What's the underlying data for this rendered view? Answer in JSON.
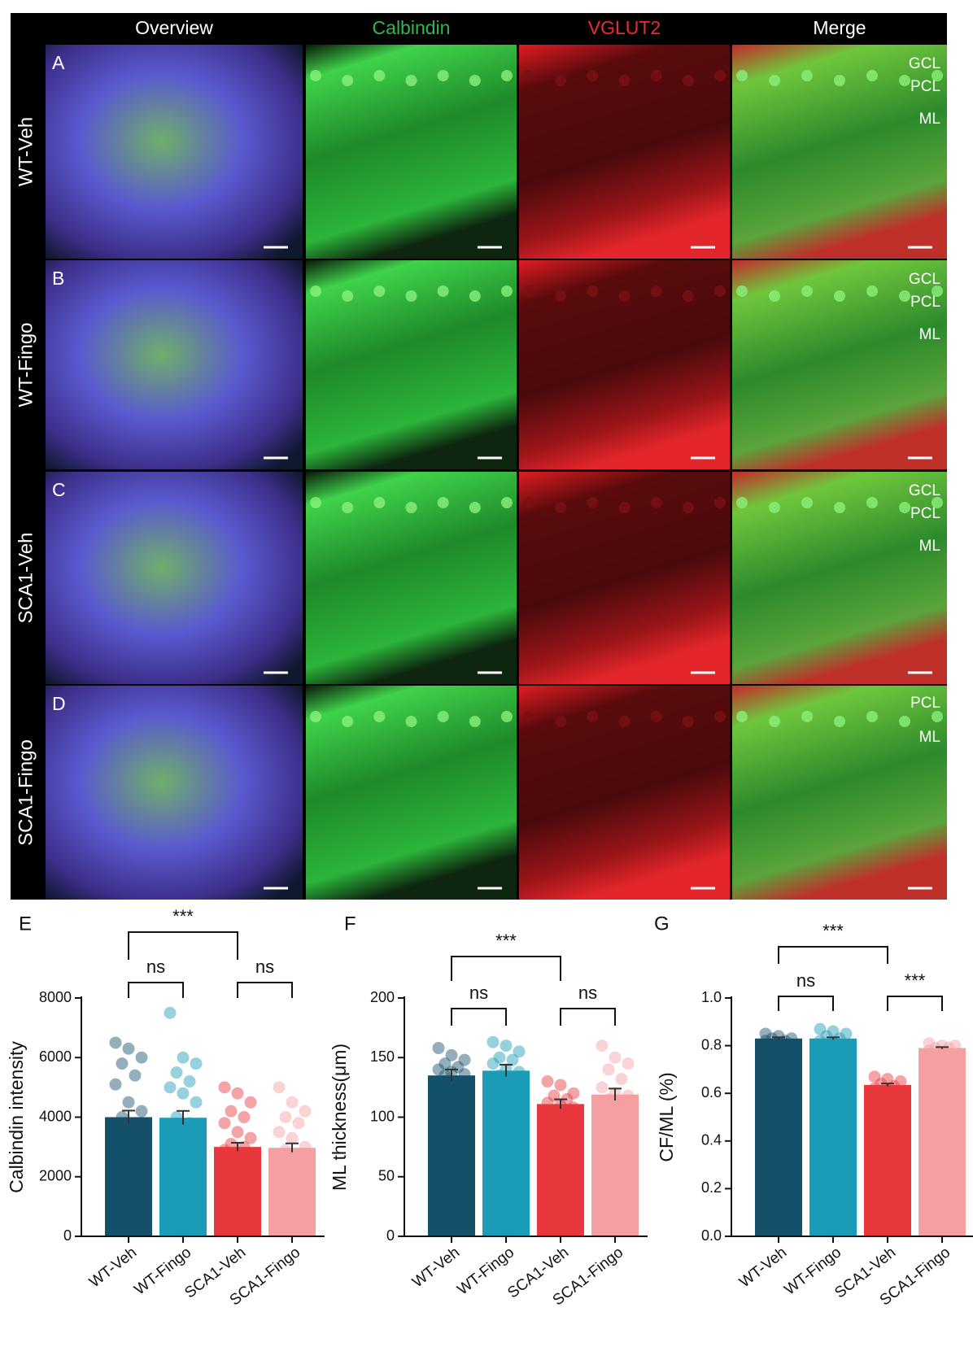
{
  "figure": {
    "columns": [
      "Overview",
      "Calbindin",
      "VGLUT2",
      "Merge"
    ],
    "rows": [
      {
        "panel": "A",
        "label": "WT-Veh",
        "layers": [
          "GCL",
          "PCL",
          "ML"
        ]
      },
      {
        "panel": "B",
        "label": "WT-Fingo",
        "layers": [
          "GCL",
          "PCL",
          "ML"
        ]
      },
      {
        "panel": "C",
        "label": "SCA1-Veh",
        "layers": [
          "GCL",
          "PCL",
          "ML"
        ]
      },
      {
        "panel": "D",
        "label": "SCA1-Fingo",
        "layers": [
          "PCL",
          "ML"
        ]
      }
    ]
  },
  "chart_data": [
    {
      "type": "bar",
      "panel": "E",
      "ylabel": "Calbindin intensity",
      "categories": [
        "WT-Veh",
        "WT-Fingo",
        "SCA1-Veh",
        "SCA1-Fingo"
      ],
      "colors": [
        "#14506a",
        "#1a9bb8",
        "#e8383d",
        "#f4a0a3"
      ],
      "values": [
        4000,
        3980,
        3000,
        2970
      ],
      "errors": [
        220,
        230,
        140,
        150
      ],
      "points": [
        [
          6500,
          6300,
          6000,
          5800,
          5400,
          5100,
          4500,
          4200,
          4000,
          3800,
          3600,
          3400,
          3200,
          3000,
          2800,
          2600
        ],
        [
          7500,
          6000,
          5800,
          5500,
          5200,
          5000,
          4800,
          4500,
          4000,
          3800,
          3600,
          3300,
          3000,
          2800,
          2500
        ],
        [
          5000,
          4800,
          4500,
          4200,
          4000,
          3800,
          3500,
          3300,
          3100,
          3000,
          2900,
          2800,
          2600,
          2400,
          2200,
          2000
        ],
        [
          5000,
          4500,
          4200,
          4000,
          3800,
          3500,
          3300,
          3000,
          2900,
          2700,
          2500,
          2300,
          2100,
          2000,
          1800
        ]
      ],
      "ylim": [
        0,
        8000
      ],
      "yticks": [
        0,
        2000,
        4000,
        6000,
        8000
      ],
      "significance": [
        "***",
        "ns",
        "ns"
      ]
    },
    {
      "type": "bar",
      "panel": "F",
      "ylabel": "ML thickness(μm)",
      "categories": [
        "WT-Veh",
        "WT-Fingo",
        "SCA1-Veh",
        "SCA1-Fingo"
      ],
      "colors": [
        "#14506a",
        "#1a9bb8",
        "#e8383d",
        "#f4a0a3"
      ],
      "values": [
        135,
        139,
        111,
        119
      ],
      "errors": [
        5,
        5,
        4,
        5
      ],
      "points": [
        [
          158,
          152,
          148,
          145,
          142,
          140,
          138,
          136,
          135,
          130,
          125,
          120,
          115,
          105
        ],
        [
          163,
          160,
          155,
          150,
          148,
          145,
          140,
          138,
          135,
          130,
          125,
          120,
          110,
          102
        ],
        [
          130,
          127,
          120,
          118,
          115,
          112,
          110,
          108,
          105,
          100,
          98,
          95,
          88
        ],
        [
          160,
          150,
          145,
          140,
          132,
          125,
          120,
          118,
          115,
          110,
          105,
          100,
          95
        ]
      ],
      "ylim": [
        0,
        200
      ],
      "yticks": [
        0,
        50,
        100,
        150,
        200
      ],
      "significance": [
        "***",
        "ns",
        "ns"
      ]
    },
    {
      "type": "bar",
      "panel": "G",
      "ylabel": "CF/ML (%)",
      "categories": [
        "WT-Veh",
        "WT-Fingo",
        "SCA1-Veh",
        "SCA1-Fingo"
      ],
      "colors": [
        "#14506a",
        "#1a9bb8",
        "#e8383d",
        "#f4a0a3"
      ],
      "values": [
        0.83,
        0.83,
        0.635,
        0.79
      ],
      "errors": [
        0.005,
        0.005,
        0.006,
        0.004
      ],
      "points": [
        [
          0.85,
          0.84,
          0.83,
          0.83,
          0.82,
          0.82,
          0.81,
          0.8
        ],
        [
          0.87,
          0.86,
          0.85,
          0.84,
          0.83,
          0.82,
          0.81,
          0.8
        ],
        [
          0.67,
          0.66,
          0.65,
          0.64,
          0.63,
          0.62,
          0.61,
          0.6
        ],
        [
          0.81,
          0.8,
          0.8,
          0.79,
          0.79,
          0.78
        ]
      ],
      "ylim": [
        0,
        1
      ],
      "yticks": [
        {
          "value": 0,
          "label": "0.0"
        },
        0.2,
        0.4,
        0.6,
        0.8,
        {
          "value": 1,
          "label": "1.0"
        }
      ],
      "significance": [
        "***",
        "ns",
        "***"
      ]
    }
  ]
}
